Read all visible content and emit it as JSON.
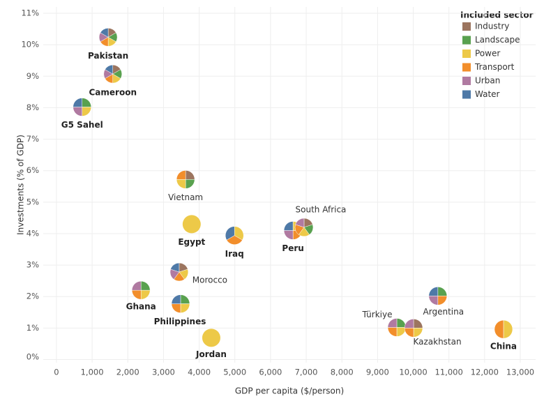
{
  "chart_data": {
    "type": "scatter",
    "x_label": "GDP per capita ($/person)",
    "y_label": "Investments (% of GDP)",
    "xlim": [
      -370,
      13430
    ],
    "ylim": [
      -0.1,
      11.2
    ],
    "xticks": [
      0,
      {
        "value": 1000,
        "label": "1,000"
      },
      {
        "value": 2000,
        "label": "2,000"
      },
      {
        "value": 3000,
        "label": "3,000"
      },
      {
        "value": 4000,
        "label": "4,000"
      },
      {
        "value": 5000,
        "label": "5,000"
      },
      {
        "value": 6000,
        "label": "6,000"
      },
      {
        "value": 7000,
        "label": "7,000"
      },
      {
        "value": 8000,
        "label": "8,000"
      },
      {
        "value": 9000,
        "label": "9,000"
      },
      {
        "value": 10000,
        "label": "10,000"
      },
      {
        "value": 11000,
        "label": "11,000"
      },
      {
        "value": 12000,
        "label": "12,000"
      },
      {
        "value": 13000,
        "label": "13,000"
      }
    ],
    "yticks": [
      {
        "value": 0,
        "label": "0%"
      },
      {
        "value": 1,
        "label": "1%"
      },
      {
        "value": 2,
        "label": "2%"
      },
      {
        "value": 3,
        "label": "3%"
      },
      {
        "value": 4,
        "label": "4%"
      },
      {
        "value": 5,
        "label": "5%"
      },
      {
        "value": 6,
        "label": "6%"
      },
      {
        "value": 7,
        "label": "7%"
      },
      {
        "value": 8,
        "label": "8%"
      },
      {
        "value": 9,
        "label": "9%"
      },
      {
        "value": 10,
        "label": "10%"
      },
      {
        "value": 11,
        "label": "11%"
      }
    ],
    "grid": true,
    "legend": {
      "title": "Included sector",
      "position": "top-right",
      "items": [
        {
          "name": "Industry",
          "color": "#9c755f"
        },
        {
          "name": "Landscape",
          "color": "#59a14f"
        },
        {
          "name": "Power",
          "color": "#edc948"
        },
        {
          "name": "Transport",
          "color": "#f28e2b"
        },
        {
          "name": "Urban",
          "color": "#b07aa1"
        },
        {
          "name": "Water",
          "color": "#4e79a7"
        }
      ]
    },
    "points": [
      {
        "name": "Pakistan",
        "x": 1450,
        "y": 10.24,
        "sectors": [
          0,
          1,
          2,
          3,
          4,
          5
        ]
      },
      {
        "name": "Cameroon",
        "x": 1580,
        "y": 9.07,
        "sectors": [
          0,
          1,
          2,
          3,
          4,
          5
        ]
      },
      {
        "name": "G5 Sahel",
        "x": 720,
        "y": 8.02,
        "sectors": [
          1,
          2,
          4,
          5
        ]
      },
      {
        "name": "Vietnam",
        "x": 3620,
        "y": 5.72,
        "sectors": [
          0,
          1,
          2,
          3
        ]
      },
      {
        "name": "Egypt",
        "x": 3790,
        "y": 4.3,
        "sectors": [
          2
        ]
      },
      {
        "name": "Iraq",
        "x": 4990,
        "y": 3.94,
        "sectors": [
          2,
          3,
          5
        ]
      },
      {
        "name": "Peru",
        "x": 6630,
        "y": 4.1,
        "sectors": [
          2,
          3,
          4,
          5
        ]
      },
      {
        "name": "South Africa",
        "x": 6940,
        "y": 4.2,
        "sectors": [
          0,
          1,
          2,
          3,
          4
        ]
      },
      {
        "name": "Morocco",
        "x": 3440,
        "y": 2.78,
        "sectors": [
          0,
          2,
          3,
          4,
          5
        ]
      },
      {
        "name": "Ghana",
        "x": 2370,
        "y": 2.2,
        "sectors": [
          1,
          2,
          3,
          4
        ]
      },
      {
        "name": "Philippines",
        "x": 3480,
        "y": 1.77,
        "sectors": [
          1,
          2,
          3,
          5
        ]
      },
      {
        "name": "Jordan",
        "x": 4340,
        "y": 0.69,
        "sectors": [
          2
        ]
      },
      {
        "name": "Argentina",
        "x": 10690,
        "y": 2.02,
        "sectors": [
          1,
          3,
          4,
          5
        ]
      },
      {
        "name": "Türkiye",
        "x": 9540,
        "y": 1.02,
        "sectors": [
          1,
          2,
          3,
          4
        ]
      },
      {
        "name": "Kazakhstan",
        "x": 10010,
        "y": 1.0,
        "sectors": [
          0,
          2,
          3,
          4
        ]
      },
      {
        "name": "China",
        "x": 12530,
        "y": 0.96,
        "sectors": [
          2,
          3
        ]
      }
    ]
  }
}
